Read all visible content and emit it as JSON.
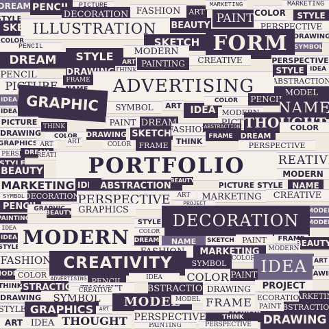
{
  "words": {
    "portfolio": "PORTFOLIO",
    "advertising": "ADVERTISING",
    "illustration": "ILLUSTRATION",
    "form": "FORM",
    "graphic": "GRAPHIC",
    "decoration": "DECORATION",
    "modern": "MODERN",
    "creativity": "CREATIVITY",
    "idea": "IDEA",
    "thought": "THOUGHT",
    "name": "NAME",
    "dream": "DREAM",
    "style": "STYLE",
    "sketch": "SKETCH",
    "beauty": "BEAUTY",
    "picture": "PICTURE",
    "color": "COLOR",
    "drawing": "DRAWING",
    "pencil": "PENCIL",
    "perspective": "PERSPECTIVE",
    "abstraction": "ABSTRACTION",
    "symbol": "SYMBOL",
    "painting": "PAINTING",
    "fashion": "FASHION",
    "marketing": "MARKETING",
    "frame": "FRAME",
    "model": "MODEL",
    "art": "ART",
    "paint": "PAINT",
    "graphics": "GRAPHICS",
    "project": "PROJECT",
    "think": "THINK",
    "creative": "CREATIVE"
  }
}
